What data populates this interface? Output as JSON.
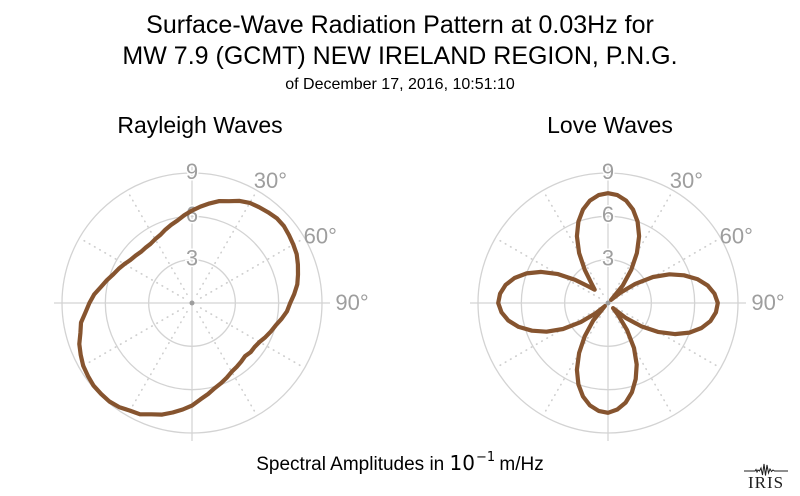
{
  "title": {
    "line1": "Surface-Wave Radiation Pattern at 0.03Hz for",
    "line2": "MW 7.9 (GCMT) NEW IRELAND REGION, P.N.G.",
    "line3": "of December 17, 2016, 10:51:10"
  },
  "footer": {
    "caption_prefix": "Spectral Amplitudes in ",
    "math_base": "10",
    "math_exponent": "−1",
    "caption_suffix": " m/Hz",
    "logo_text": "IRIS"
  },
  "colors": {
    "pattern": "#86542F",
    "grid": "#d3d3d3",
    "grid_dotted": "#cfcfcf",
    "axis_labels": "#9e9e9e",
    "center_dot": "#9e9e9e",
    "text": "#000000"
  },
  "chart_data": [
    {
      "type": "line",
      "subtype": "polar-radiation-pattern",
      "title": "Rayleigh Waves",
      "r_ticks": [
        3,
        6,
        9
      ],
      "r_tick_labels": [
        "3",
        "6",
        "9"
      ],
      "r_max": 9,
      "angle_labels": [
        {
          "angle_deg": 30,
          "label": "30°"
        },
        {
          "angle_deg": 60,
          "label": "60°"
        },
        {
          "angle_deg": 90,
          "label": "90°"
        }
      ],
      "angle_convention": "azimuth in degrees clockwise from North (up)",
      "amplitude_units": "10^-1 m/Hz",
      "azimuth_start_deg": 0,
      "azimuth_step_deg": 5,
      "values": [
        6.4,
        6.7,
        7.0,
        7.3,
        7.5,
        7.8,
        8.0,
        8.1,
        8.2,
        8.3,
        8.3,
        8.2,
        8.1,
        8.0,
        7.8,
        7.6,
        7.4,
        7.1,
        6.8,
        6.6,
        6.3,
        6.0,
        5.8,
        5.6,
        5.4,
        5.3,
        5.3,
        5.2,
        5.3,
        5.4,
        5.5,
        5.7,
        5.9,
        6.1,
        6.4,
        6.7,
        7.1,
        7.4,
        7.7,
        8.0,
        8.2,
        8.5,
        8.6,
        8.8,
        8.9,
        8.9,
        8.9,
        8.8,
        8.7,
        8.5,
        8.3,
        8.0,
        7.8,
        7.4,
        7.1,
        6.8,
        6.4,
        6.1,
        5.8,
        5.6,
        5.4,
        5.2,
        5.1,
        5.0,
        5.0,
        5.0,
        5.1,
        5.2,
        5.4,
        5.6,
        5.8,
        6.1
      ]
    },
    {
      "type": "line",
      "subtype": "polar-radiation-pattern",
      "title": "Love Waves",
      "r_ticks": [
        3,
        6,
        9
      ],
      "r_tick_labels": [
        "3",
        "6",
        "9"
      ],
      "r_max": 9,
      "angle_labels": [
        {
          "angle_deg": 30,
          "label": "30°"
        },
        {
          "angle_deg": 60,
          "label": "60°"
        },
        {
          "angle_deg": 90,
          "label": "90°"
        }
      ],
      "angle_convention": "azimuth in degrees clockwise from North (up)",
      "amplitude_units": "10^-1 m/Hz",
      "azimuth_start_deg": 0,
      "azimuth_step_deg": 5,
      "values": [
        7.6,
        7.5,
        7.2,
        6.7,
        6.0,
        5.1,
        4.0,
        2.8,
        1.6,
        0.3,
        1.1,
        2.3,
        3.6,
        4.7,
        5.6,
        6.4,
        7.0,
        7.4,
        7.6,
        7.5,
        7.2,
        6.7,
        6.0,
        5.1,
        4.0,
        2.8,
        1.6,
        0.5,
        1.1,
        2.3,
        3.6,
        4.7,
        5.6,
        6.4,
        7.0,
        7.4,
        7.6,
        7.5,
        7.2,
        6.7,
        6.0,
        5.1,
        4.0,
        2.8,
        1.6,
        0.3,
        1.1,
        2.3,
        3.6,
        4.7,
        5.6,
        6.4,
        7.0,
        7.4,
        7.6,
        7.5,
        7.2,
        6.7,
        6.0,
        5.1,
        4.0,
        2.8,
        1.8,
        1.3,
        1.8,
        2.8,
        4.0,
        5.1,
        6.0,
        6.7,
        7.2,
        7.5
      ]
    }
  ]
}
